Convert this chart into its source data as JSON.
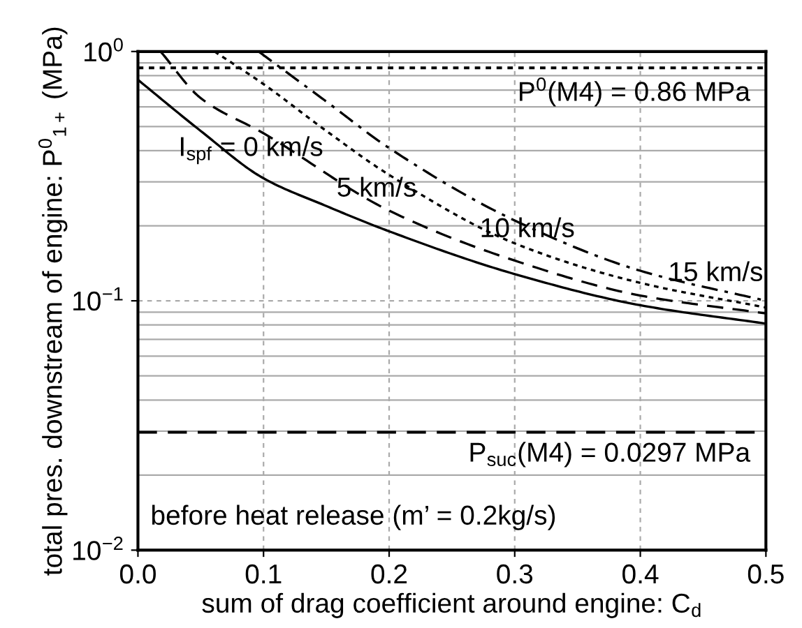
{
  "chart_data": {
    "type": "line",
    "xlabel": "sum of drag coefficient around engine: C$_{d}$",
    "ylabel": "total pres. downstream of engine: P$^{0}$$_{1+}$ (MPa)",
    "log": "y",
    "grid": true,
    "xlim": [
      0,
      0.5
    ],
    "xticks": [
      {
        "value": 0,
        "label": "0.0"
      },
      0.1,
      0.2,
      0.3,
      0.4,
      0.5
    ],
    "ylim": [
      0.01,
      1
    ],
    "yticks": [
      {
        "value": 0.01,
        "label": "10$^{−2}$"
      },
      {
        "value": 0.1,
        "label": "10$^{−1}$"
      },
      {
        "value": 1,
        "label": "10$^{0}$"
      }
    ],
    "series": [
      {
        "color": "#000000",
        "line_style": "solid",
        "x": [
          0,
          0.05,
          0.1,
          0.15,
          0.2,
          0.3,
          0.4,
          0.5
        ],
        "values": [
          0.77,
          0.48,
          0.31,
          0.24,
          0.19,
          0.128,
          0.096,
          0.081
        ]
      },
      {
        "color": "#000000",
        "line_style": "dashed",
        "x": [
          0.018,
          0.05,
          0.1,
          0.2,
          0.3,
          0.4,
          0.5
        ],
        "values": [
          1,
          0.65,
          0.47,
          0.23,
          0.145,
          0.105,
          0.089
        ]
      },
      {
        "color": "#000000",
        "line_style": "dotted",
        "x": [
          0.061,
          0.1,
          0.15,
          0.2,
          0.3,
          0.4,
          0.5
        ],
        "values": [
          1,
          0.74,
          0.48,
          0.32,
          0.17,
          0.118,
          0.094
        ]
      },
      {
        "color": "#000000",
        "line_style": "dashdot",
        "x": [
          0.096,
          0.15,
          0.2,
          0.3,
          0.4,
          0.5
        ],
        "values": [
          1,
          0.63,
          0.41,
          0.21,
          0.132,
          0.1
        ]
      }
    ],
    "ref_lines": [
      {
        "axis": "y",
        "value": 0.86,
        "label": "P$^{0}$(M4) = 0.86 MPa",
        "line_style": "dotted",
        "color": "#000000"
      },
      {
        "axis": "y",
        "value": 0.0297,
        "label": "P$_{suc}$(M4) = 0.0297 MPa",
        "line_style": "dashed",
        "color": "#000000"
      }
    ],
    "annotations": [
      {
        "text": "I$_{spf}$ = 0 km/s",
        "x": 0.09,
        "y": 0.34
      },
      {
        "text": "5 km/s",
        "x": 0.19,
        "y": 0.24
      },
      {
        "text": "10 km/s",
        "x": 0.31,
        "y": 0.165
      },
      {
        "text": "15 km/s",
        "x": 0.46,
        "y": 0.11
      },
      "before heat release (m’ = 0.2kg/s)"
    ],
    "legend": false
  }
}
